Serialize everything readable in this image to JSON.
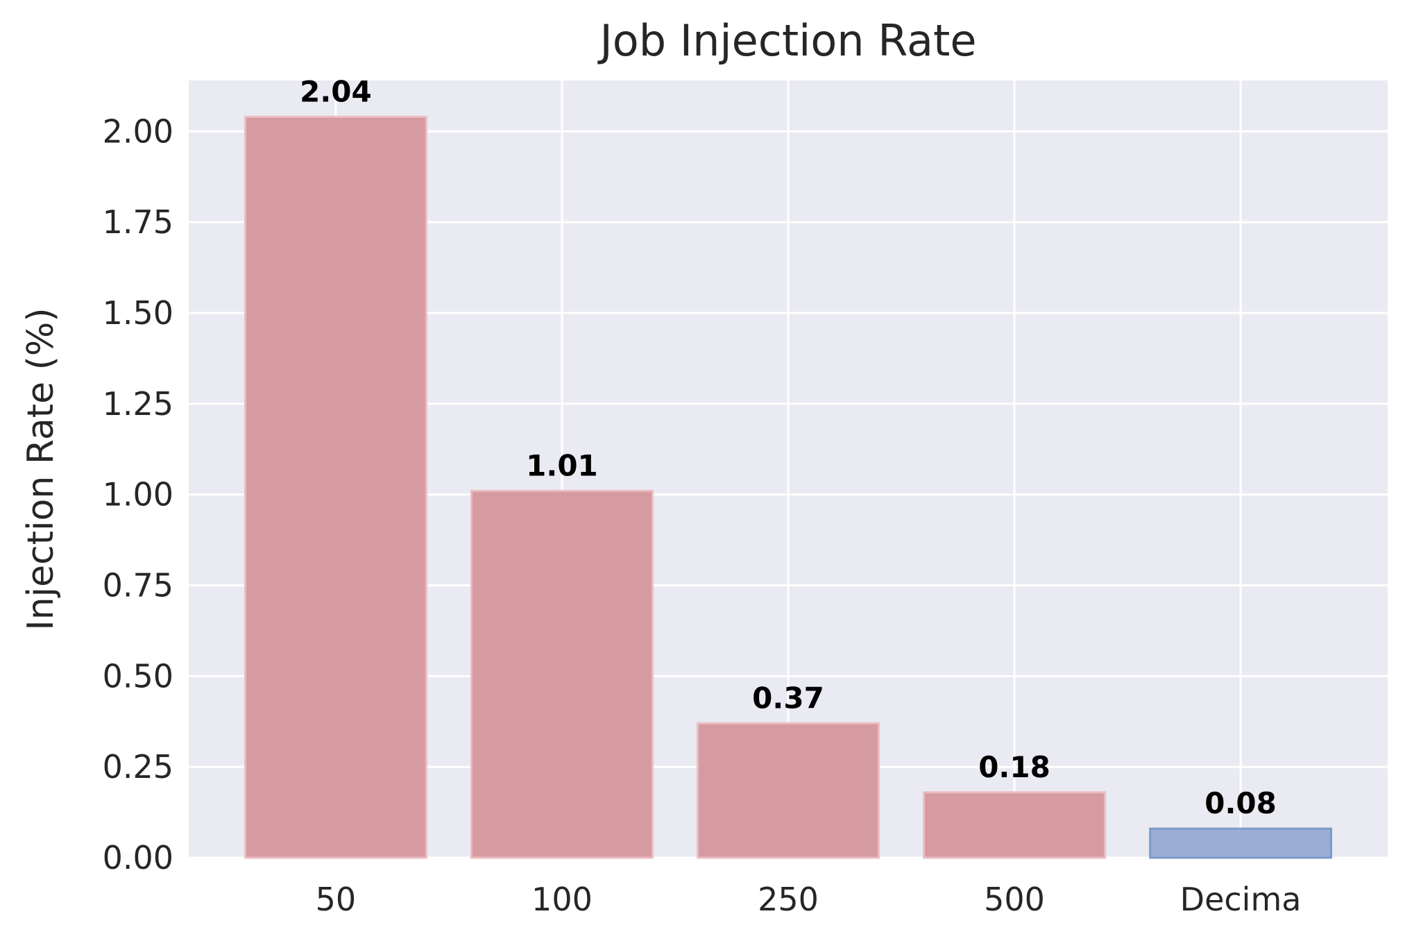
{
  "chart_data": {
    "type": "bar",
    "title": "Job Injection Rate",
    "xlabel": "",
    "ylabel": "Injection Rate (%)",
    "categories": [
      "50",
      "100",
      "250",
      "500",
      "Decima"
    ],
    "values": [
      2.04,
      1.01,
      0.37,
      0.18,
      0.08
    ],
    "value_labels": [
      "2.04",
      "1.01",
      "0.37",
      "0.18",
      "0.08"
    ],
    "bar_colors": [
      "#d69aa1",
      "#d69aa1",
      "#d69aa1",
      "#d69aa1",
      "#9aaed3"
    ],
    "bar_edge_colors": [
      "#ebbcc1",
      "#ebbcc1",
      "#ebbcc1",
      "#ebbcc1",
      "#7d9acb"
    ],
    "yticks": [
      0,
      0.25,
      0.5,
      0.75,
      1.0,
      1.25,
      1.5,
      1.75,
      2.0
    ],
    "ytick_labels": [
      "0.00",
      "0.25",
      "0.50",
      "0.75",
      "1.00",
      "1.25",
      "1.50",
      "1.75",
      "2.00"
    ],
    "ylim": [
      0,
      2.14
    ],
    "grid": true,
    "legend": "none",
    "background_color": "#eaeaf2"
  }
}
